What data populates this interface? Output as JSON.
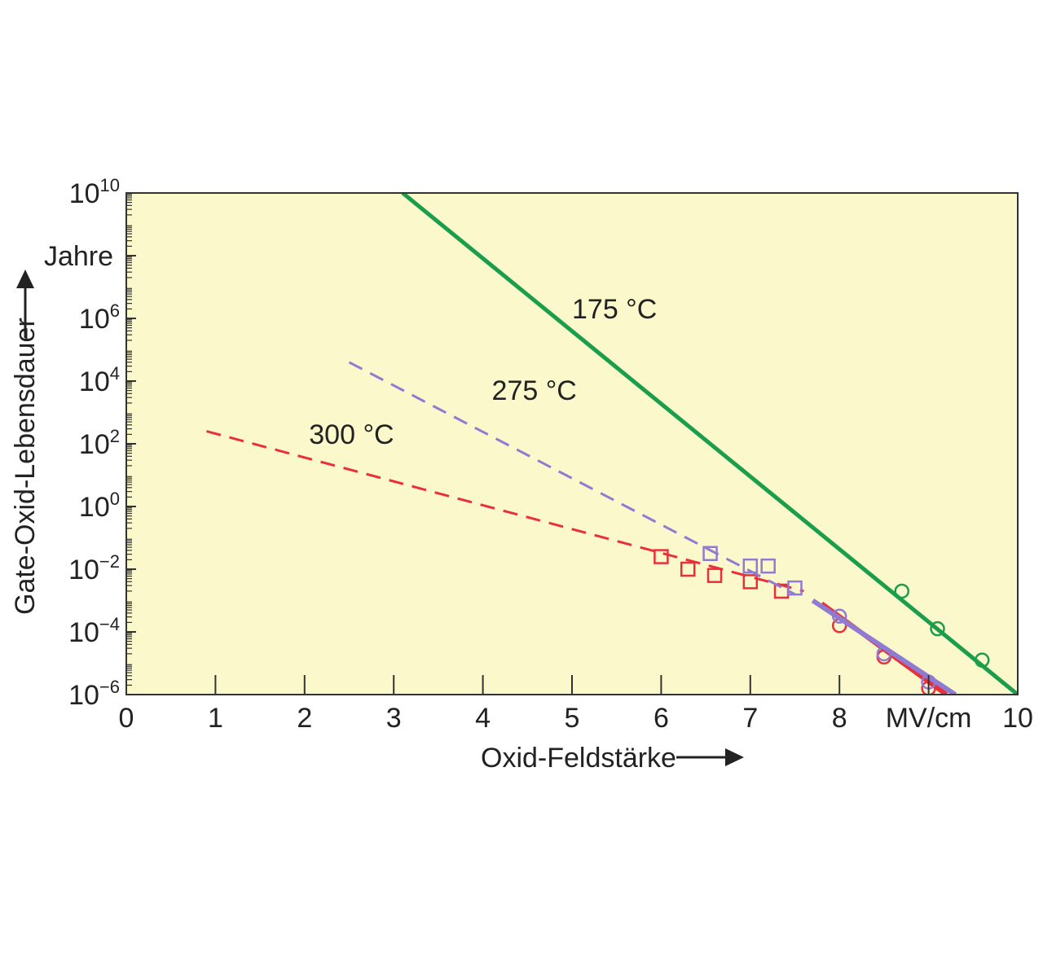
{
  "chart_data": {
    "type": "line",
    "x_unit": "MV/cm",
    "xlabel": "Oxid-Feldstärke",
    "ylabel": "Gate-Oxid-Lebensdauer",
    "y_unit": "Jahre",
    "xlim": [
      0,
      10
    ],
    "ylim": [
      -6,
      10
    ],
    "y_scale": "log10",
    "x_ticks": [
      "0",
      "1",
      "2",
      "3",
      "4",
      "5",
      "6",
      "7",
      "8",
      "9",
      "10"
    ],
    "x_tick_values": [
      0,
      1,
      2,
      3,
      4,
      5,
      6,
      7,
      8,
      9,
      10
    ],
    "x_tick_replacements": {
      "9": "MV/cm"
    },
    "y_ticks": [
      {
        "base": "10",
        "exp": "10",
        "value": 10
      },
      {
        "base": "10",
        "exp": "6",
        "value": 6
      },
      {
        "base": "10",
        "exp": "4",
        "value": 4
      },
      {
        "base": "10",
        "exp": "2",
        "value": 2
      },
      {
        "base": "10",
        "exp": "0",
        "value": 0
      },
      {
        "base": "10",
        "exp": "−2",
        "value": -2
      },
      {
        "base": "10",
        "exp": "−4",
        "value": -4
      },
      {
        "base": "10",
        "exp": "−6",
        "value": -6
      }
    ],
    "y_unit_at_value": 8,
    "background": "#fbf8cc",
    "grid": false,
    "series": [
      {
        "name": "175 °C",
        "color": "#1a9e4b",
        "fit_line": {
          "x": [
            3.1,
            10.0
          ],
          "y": [
            10.0,
            -6.0
          ],
          "style": "solid"
        },
        "points": [
          {
            "x": 8.7,
            "y": -2.7,
            "marker": "circle"
          },
          {
            "x": 9.1,
            "y": -3.9,
            "marker": "circle"
          },
          {
            "x": 9.6,
            "y": -4.9,
            "marker": "circle"
          }
        ],
        "label_pos": {
          "x": 5.0,
          "y": 6.0
        }
      },
      {
        "name": "275 °C",
        "color": "#8f7bd1",
        "fit_line": {
          "x": [
            2.5,
            7.5
          ],
          "y": [
            4.6,
            -2.8
          ],
          "style": "dashed"
        },
        "fit_line_steep": {
          "x": [
            7.7,
            9.3
          ],
          "y": [
            -3.0,
            -6.0
          ],
          "style": "solid"
        },
        "points": [
          {
            "x": 6.55,
            "y": -1.5,
            "marker": "square"
          },
          {
            "x": 7.0,
            "y": -1.9,
            "marker": "square"
          },
          {
            "x": 7.2,
            "y": -1.9,
            "marker": "square"
          },
          {
            "x": 7.5,
            "y": -2.6,
            "marker": "square"
          },
          {
            "x": 8.0,
            "y": -3.5,
            "marker": "circle"
          },
          {
            "x": 8.5,
            "y": -4.7,
            "marker": "circle"
          },
          {
            "x": 9.0,
            "y": -5.6,
            "marker": "circle"
          }
        ],
        "label_pos": {
          "x": 4.1,
          "y": 3.4
        }
      },
      {
        "name": "300 °C",
        "color": "#e8303a",
        "fit_line": {
          "x": [
            0.9,
            7.6
          ],
          "y": [
            2.4,
            -2.7
          ],
          "style": "dashed"
        },
        "fit_line_steep": {
          "x": [
            7.8,
            9.2
          ],
          "y": [
            -3.1,
            -6.0
          ],
          "style": "solid"
        },
        "points": [
          {
            "x": 6.0,
            "y": -1.6,
            "marker": "square"
          },
          {
            "x": 6.3,
            "y": -2.0,
            "marker": "square"
          },
          {
            "x": 6.6,
            "y": -2.2,
            "marker": "square"
          },
          {
            "x": 7.0,
            "y": -2.4,
            "marker": "square"
          },
          {
            "x": 7.35,
            "y": -2.7,
            "marker": "square"
          },
          {
            "x": 8.0,
            "y": -3.8,
            "marker": "circle"
          },
          {
            "x": 8.5,
            "y": -4.8,
            "marker": "circle"
          },
          {
            "x": 9.0,
            "y": -5.8,
            "marker": "circle"
          }
        ],
        "label_pos": {
          "x": 2.05,
          "y": 2.0
        }
      }
    ]
  }
}
